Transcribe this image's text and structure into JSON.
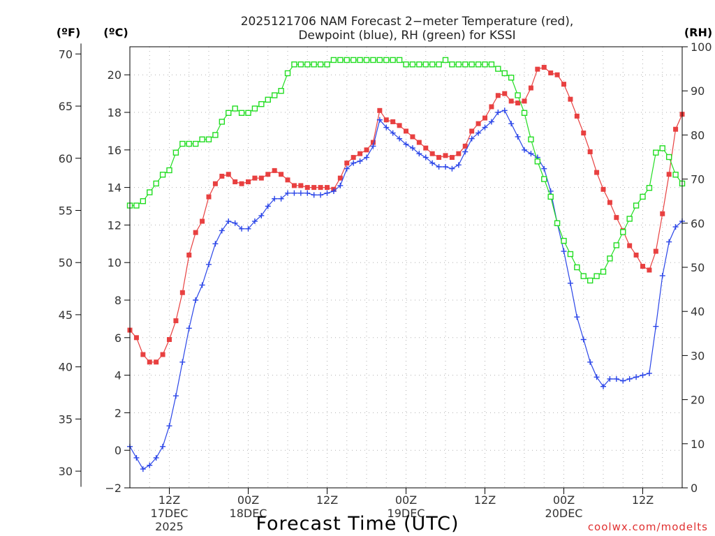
{
  "chart_data": {
    "type": "line",
    "title_line1": "2025121706 NAM Forecast 2−meter Temperature (red),",
    "title_line2": "Dewpoint (blue), RH (green) for KSSI",
    "xlabel": "Forecast Time (UTC)",
    "unit_left_f": "(ºF)",
    "unit_left_c": "(ºC)",
    "unit_right_rh": "(RH)",
    "credit": "coolwx.com/modelts",
    "x_start_hour": 6,
    "x_end_hour": 90,
    "x_ticks": [
      {
        "hour": 12,
        "label1": "12Z",
        "label2": "17DEC",
        "label3": "2025"
      },
      {
        "hour": 24,
        "label1": "00Z",
        "label2": "18DEC",
        "label3": ""
      },
      {
        "hour": 36,
        "label1": "12Z",
        "label2": "",
        "label3": ""
      },
      {
        "hour": 48,
        "label1": "00Z",
        "label2": "19DEC",
        "label3": ""
      },
      {
        "hour": 60,
        "label1": "12Z",
        "label2": "",
        "label3": ""
      },
      {
        "hour": 72,
        "label1": "00Z",
        "label2": "20DEC",
        "label3": ""
      },
      {
        "hour": 84,
        "label1": "12Z",
        "label2": "",
        "label3": ""
      }
    ],
    "ylim_c": [
      -2,
      21.5
    ],
    "yticks_c": [
      -2,
      0,
      2,
      4,
      6,
      8,
      10,
      12,
      14,
      16,
      18,
      20
    ],
    "yticks_f": [
      30,
      35,
      40,
      45,
      50,
      55,
      60,
      65,
      70
    ],
    "ylim_rh": [
      0,
      100
    ],
    "yticks_rh": [
      0,
      10,
      20,
      30,
      40,
      50,
      60,
      70,
      80,
      90,
      100
    ],
    "grid": true,
    "series": [
      {
        "name": "Temperature",
        "color": "#e84040",
        "marker": "filled-square",
        "axis": "c",
        "values": [
          6.4,
          6.0,
          5.1,
          4.7,
          4.7,
          5.1,
          5.9,
          6.9,
          8.4,
          10.4,
          11.6,
          12.2,
          13.5,
          14.2,
          14.6,
          14.7,
          14.3,
          14.2,
          14.3,
          14.5,
          14.5,
          14.7,
          14.9,
          14.7,
          14.4,
          14.1,
          14.1,
          14.0,
          14.0,
          14.0,
          14.0,
          13.9,
          14.5,
          15.3,
          15.6,
          15.8,
          16.0,
          16.4,
          18.1,
          17.6,
          17.5,
          17.3,
          17.0,
          16.7,
          16.4,
          16.1,
          15.8,
          15.6,
          15.7,
          15.6,
          15.8,
          16.2,
          17.0,
          17.4,
          17.7,
          18.3,
          18.9,
          19.0,
          18.6,
          18.5,
          18.6,
          19.3,
          20.3,
          20.4,
          20.1,
          20.0,
          19.5,
          18.7,
          17.8,
          16.9,
          15.9,
          14.8,
          13.9,
          13.2,
          12.4,
          11.7,
          10.9,
          10.4,
          9.8,
          9.6,
          10.6,
          12.6,
          14.7,
          17.1,
          17.9
        ]
      },
      {
        "name": "Dewpoint",
        "color": "#2a45e8",
        "marker": "plus",
        "axis": "c",
        "values": [
          0.2,
          -0.4,
          -1.0,
          -0.8,
          -0.4,
          0.2,
          1.3,
          2.9,
          4.7,
          6.5,
          8.0,
          8.8,
          9.9,
          11.0,
          11.7,
          12.2,
          12.1,
          11.8,
          11.8,
          12.2,
          12.5,
          13.0,
          13.4,
          13.4,
          13.7,
          13.7,
          13.7,
          13.7,
          13.6,
          13.6,
          13.7,
          13.8,
          14.1,
          15.0,
          15.3,
          15.4,
          15.6,
          16.2,
          17.6,
          17.2,
          16.9,
          16.6,
          16.3,
          16.1,
          15.8,
          15.6,
          15.3,
          15.1,
          15.1,
          15.0,
          15.2,
          15.9,
          16.6,
          16.9,
          17.2,
          17.5,
          18.0,
          18.1,
          17.4,
          16.7,
          16.0,
          15.8,
          15.6,
          15.0,
          13.8,
          12.1,
          10.6,
          8.9,
          7.1,
          5.9,
          4.7,
          3.9,
          3.4,
          3.8,
          3.8,
          3.7,
          3.8,
          3.9,
          4.0,
          4.1,
          6.6,
          9.3,
          11.1,
          11.9,
          12.2
        ]
      },
      {
        "name": "RH",
        "color": "#22dd22",
        "marker": "open-square",
        "axis": "rh",
        "values": [
          64,
          64,
          65,
          67,
          69,
          71,
          72,
          76,
          78,
          78,
          78,
          79,
          79,
          80,
          83,
          85,
          86,
          85,
          85,
          86,
          87,
          88,
          89,
          90,
          94,
          96,
          96,
          96,
          96,
          96,
          96,
          97,
          97,
          97,
          97,
          97,
          97,
          97,
          97,
          97,
          97,
          97,
          96,
          96,
          96,
          96,
          96,
          96,
          97,
          96,
          96,
          96,
          96,
          96,
          96,
          96,
          95,
          94,
          93,
          89,
          85,
          79,
          74,
          70,
          66,
          60,
          56,
          53,
          50,
          48,
          47,
          48,
          49,
          52,
          55,
          58,
          61,
          64,
          66,
          68,
          76,
          77,
          75,
          71,
          69
        ]
      }
    ]
  }
}
